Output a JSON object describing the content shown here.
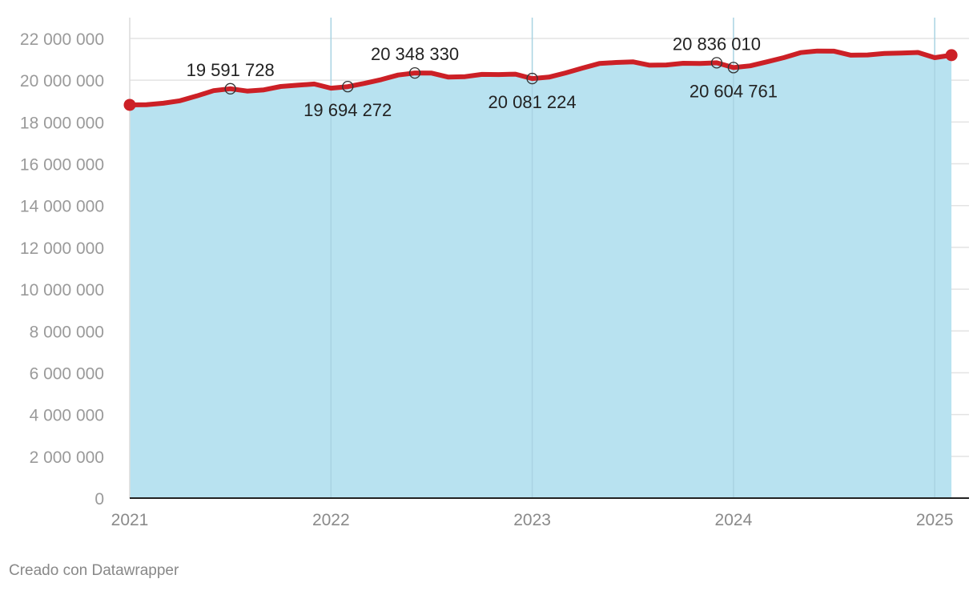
{
  "chart_data": {
    "type": "area",
    "title": "",
    "xlabel": "",
    "ylabel": "",
    "ylim": [
      0,
      22000000
    ],
    "xlim": [
      "2021-01",
      "2025-02"
    ],
    "y_ticks": [
      0,
      2000000,
      4000000,
      6000000,
      8000000,
      10000000,
      12000000,
      14000000,
      16000000,
      18000000,
      20000000,
      22000000
    ],
    "y_tick_labels": [
      "0",
      "2 000 000",
      "4 000 000",
      "6 000 000",
      "8 000 000",
      "10 000 000",
      "12 000 000",
      "14 000 000",
      "16 000 000",
      "18 000 000",
      "20 000 000",
      "22 000 000"
    ],
    "x_ticks": [
      "2021",
      "2022",
      "2023",
      "2024",
      "2025"
    ],
    "grid": true,
    "colors": {
      "line": "#cc2026",
      "area": "#b8e2f0",
      "grid": "#e3e3e3",
      "vgrid": "#a9d3e2",
      "axis": "#222222"
    },
    "series": [
      {
        "x": [
          "2021-01",
          "2021-02",
          "2021-03",
          "2021-04",
          "2021-05",
          "2021-06",
          "2021-07",
          "2021-08",
          "2021-09",
          "2021-10",
          "2021-11",
          "2021-12",
          "2022-01",
          "2022-02",
          "2022-03",
          "2022-04",
          "2022-05",
          "2022-06",
          "2022-07",
          "2022-08",
          "2022-09",
          "2022-10",
          "2022-11",
          "2022-12",
          "2023-01",
          "2023-02",
          "2023-03",
          "2023-04",
          "2023-05",
          "2023-06",
          "2023-07",
          "2023-08",
          "2023-09",
          "2023-10",
          "2023-11",
          "2023-12",
          "2024-01",
          "2024-02",
          "2024-03",
          "2024-04",
          "2024-05",
          "2024-06",
          "2024-07",
          "2024-08",
          "2024-09",
          "2024-10",
          "2024-11",
          "2024-12",
          "2025-01",
          "2025-02"
        ],
        "values": [
          18820000,
          18830000,
          18900000,
          19020000,
          19250000,
          19500000,
          19591728,
          19480000,
          19540000,
          19700000,
          19760000,
          19820000,
          19620000,
          19694272,
          19850000,
          20030000,
          20250000,
          20348330,
          20340000,
          20150000,
          20170000,
          20280000,
          20270000,
          20290000,
          20081224,
          20150000,
          20350000,
          20580000,
          20800000,
          20850000,
          20880000,
          20720000,
          20730000,
          20810000,
          20800000,
          20836010,
          20604761,
          20690000,
          20880000,
          21080000,
          21320000,
          21400000,
          21390000,
          21200000,
          21210000,
          21280000,
          21300000,
          21330000,
          21080000,
          21200000
        ]
      }
    ],
    "annotations": [
      {
        "x": "2021-07",
        "value": 19591728,
        "label": "19 591 728",
        "position": "above"
      },
      {
        "x": "2022-02",
        "value": 19694272,
        "label": "19 694 272",
        "position": "below"
      },
      {
        "x": "2022-06",
        "value": 20348330,
        "label": "20 348 330",
        "position": "above"
      },
      {
        "x": "2023-01",
        "value": 20081224,
        "label": "20 081 224",
        "position": "below"
      },
      {
        "x": "2023-12",
        "value": 20836010,
        "label": "20 836 010",
        "position": "above"
      },
      {
        "x": "2024-01",
        "value": 20604761,
        "label": "20 604 761",
        "position": "below"
      }
    ],
    "endpoints_marked": true
  },
  "footer": {
    "credit": "Creado con Datawrapper"
  }
}
